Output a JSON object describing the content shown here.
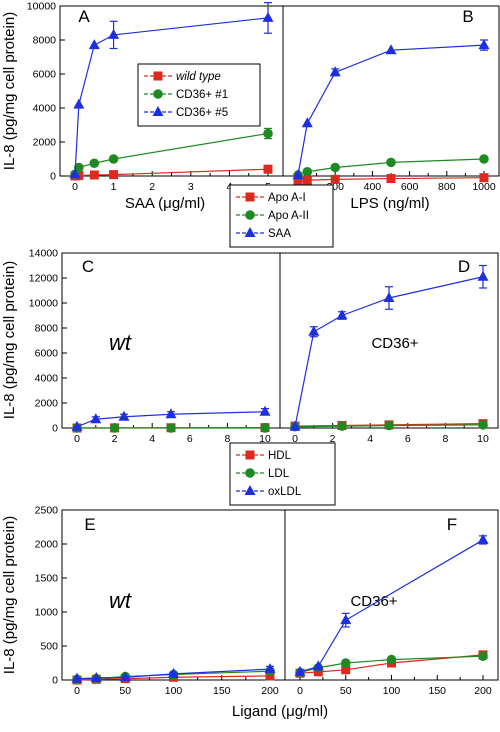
{
  "colors": {
    "red": "#dd2a1f",
    "green": "#1f8a23",
    "blue": "#1f2fe0"
  },
  "chart_data": [
    {
      "type": "line",
      "title": "",
      "ylabel": "IL-8 (pg/mg cell protein)",
      "ylim": [
        0,
        10000
      ],
      "yticks": [
        "0",
        "2000",
        "4000",
        "6000",
        "8000",
        "10000"
      ],
      "yticks_num": [
        0,
        2000,
        4000,
        6000,
        8000,
        10000
      ],
      "legend": [
        "wild type",
        "CD36+ #1",
        "CD36+ #5"
      ],
      "legend_placement": "top-right of panel A",
      "panels": [
        {
          "letter": "A",
          "xlabel": "SAA (μg/ml)",
          "xlim": [
            0,
            5
          ],
          "xticks": [
            "0",
            "1",
            "2",
            "3",
            "4",
            "5"
          ],
          "xticks_num": [
            0,
            1,
            2,
            3,
            4,
            5
          ],
          "series": [
            {
              "name": "wild type",
              "color": "red",
              "marker": "square",
              "x": [
                0,
                0.1,
                0.5,
                1,
                5
              ],
              "y": [
                0,
                30,
                60,
                80,
                400
              ],
              "err": [
                0,
                0,
                0,
                0,
                0
              ]
            },
            {
              "name": "CD36+ #1",
              "color": "green",
              "marker": "circle",
              "x": [
                0,
                0.1,
                0.5,
                1,
                5
              ],
              "y": [
                100,
                500,
                750,
                1000,
                2500
              ],
              "err": [
                0,
                0,
                0,
                0,
                300
              ]
            },
            {
              "name": "CD36+ #5",
              "color": "blue",
              "marker": "triangle",
              "x": [
                0,
                0.1,
                0.5,
                1,
                5
              ],
              "y": [
                100,
                4200,
                7700,
                8300,
                9300
              ],
              "err": [
                0,
                0,
                0,
                800,
                900
              ]
            }
          ]
        },
        {
          "letter": "B",
          "xlabel": "LPS (ng/ml)",
          "xlim": [
            0,
            1000
          ],
          "xticks": [
            "0",
            "200",
            "400",
            "600",
            "800",
            "1000"
          ],
          "xticks_num": [
            0,
            200,
            400,
            600,
            800,
            1000
          ],
          "series": [
            {
              "name": "wild type",
              "color": "red",
              "marker": "square",
              "x": [
                0,
                50,
                200,
                500,
                1000
              ],
              "y": [
                -300,
                -250,
                -200,
                -150,
                -100
              ],
              "err": [
                0,
                0,
                0,
                0,
                0
              ]
            },
            {
              "name": "CD36+ #1",
              "color": "green",
              "marker": "circle",
              "x": [
                0,
                50,
                200,
                500,
                1000
              ],
              "y": [
                50,
                250,
                500,
                800,
                1000
              ],
              "err": [
                0,
                0,
                0,
                0,
                0
              ]
            },
            {
              "name": "CD36+ #5",
              "color": "blue",
              "marker": "triangle",
              "x": [
                0,
                50,
                200,
                500,
                1000
              ],
              "y": [
                50,
                3100,
                6100,
                7400,
                7700
              ],
              "err": [
                0,
                0,
                200,
                0,
                300
              ]
            }
          ]
        }
      ]
    },
    {
      "type": "line",
      "title": "",
      "ylabel": "IL-8 (pg/mg cell protein)",
      "xlabel": "Ligand (μg/ml)",
      "ylim": [
        0,
        14000
      ],
      "yticks": [
        "0",
        "2000",
        "4000",
        "6000",
        "8000",
        "10000",
        "12000",
        "14000"
      ],
      "yticks_num": [
        0,
        2000,
        4000,
        6000,
        8000,
        10000,
        12000,
        14000
      ],
      "legend": [
        "Apo A-I",
        "Apo A-II",
        "SAA"
      ],
      "legend_placement": "top-center above panels",
      "panels": [
        {
          "letter": "C",
          "annotation": "wt",
          "xlim": [
            0,
            10
          ],
          "xticks": [
            "0",
            "2",
            "4",
            "6",
            "8",
            "10"
          ],
          "xticks_num": [
            0,
            2,
            4,
            6,
            8,
            10
          ],
          "series": [
            {
              "name": "Apo A-I",
              "color": "red",
              "marker": "square",
              "x": [
                0,
                2,
                5,
                10
              ],
              "y": [
                0,
                10,
                20,
                30
              ],
              "err": [
                0,
                0,
                0,
                0
              ]
            },
            {
              "name": "Apo A-II",
              "color": "green",
              "marker": "circle",
              "x": [
                0,
                2,
                5,
                10
              ],
              "y": [
                0,
                0,
                0,
                0
              ],
              "err": [
                0,
                0,
                0,
                0
              ]
            },
            {
              "name": "SAA",
              "color": "blue",
              "marker": "triangle",
              "x": [
                0,
                1,
                2.5,
                5,
                10
              ],
              "y": [
                100,
                700,
                900,
                1100,
                1300
              ],
              "err": [
                0,
                200,
                200,
                200,
                250
              ]
            }
          ]
        },
        {
          "letter": "D",
          "annotation": "CD36+",
          "xlim": [
            0,
            10
          ],
          "xticks": [
            "0",
            "2",
            "4",
            "6",
            "8",
            "10"
          ],
          "xticks_num": [
            0,
            2,
            4,
            6,
            8,
            10
          ],
          "series": [
            {
              "name": "Apo A-I",
              "color": "red",
              "marker": "square",
              "x": [
                0,
                2.5,
                5,
                10
              ],
              "y": [
                150,
                200,
                250,
                350
              ],
              "err": [
                0,
                0,
                0,
                0
              ]
            },
            {
              "name": "Apo A-II",
              "color": "green",
              "marker": "circle",
              "x": [
                0,
                2.5,
                5,
                10
              ],
              "y": [
                100,
                150,
                200,
                250
              ],
              "err": [
                0,
                0,
                0,
                0
              ]
            },
            {
              "name": "SAA",
              "color": "blue",
              "marker": "triangle",
              "x": [
                0,
                1,
                2.5,
                5,
                10
              ],
              "y": [
                100,
                7700,
                9000,
                10400,
                12100
              ],
              "err": [
                0,
                400,
                300,
                900,
                900
              ]
            }
          ]
        }
      ]
    },
    {
      "type": "line",
      "title": "",
      "ylabel": "IL-8 (pg/mg cell protein)",
      "xlabel": "Ligand (μg/ml)",
      "ylim": [
        0,
        2500
      ],
      "yticks": [
        "0",
        "500",
        "1000",
        "1500",
        "2000",
        "2500"
      ],
      "yticks_num": [
        0,
        500,
        1000,
        1500,
        2000,
        2500
      ],
      "legend": [
        "HDL",
        "LDL",
        "oxLDL"
      ],
      "legend_placement": "top-center above panels",
      "panels": [
        {
          "letter": "E",
          "annotation": "wt",
          "xlim": [
            0,
            200
          ],
          "xticks": [
            "0",
            "50",
            "100",
            "150",
            "200"
          ],
          "xticks_num": [
            0,
            50,
            100,
            150,
            200
          ],
          "series": [
            {
              "name": "HDL",
              "color": "red",
              "marker": "square",
              "x": [
                0,
                20,
                50,
                100,
                200
              ],
              "y": [
                0,
                10,
                20,
                40,
                60
              ],
              "err": [
                0,
                0,
                0,
                0,
                0
              ]
            },
            {
              "name": "LDL",
              "color": "green",
              "marker": "circle",
              "x": [
                0,
                20,
                50,
                100,
                200
              ],
              "y": [
                10,
                20,
                50,
                80,
                130
              ],
              "err": [
                0,
                0,
                0,
                0,
                0
              ]
            },
            {
              "name": "oxLDL",
              "color": "blue",
              "marker": "triangle",
              "x": [
                0,
                20,
                50,
                100,
                200
              ],
              "y": [
                20,
                30,
                40,
                90,
                160
              ],
              "err": [
                0,
                0,
                0,
                20,
                40
              ]
            }
          ]
        },
        {
          "letter": "F",
          "annotation": "CD36+",
          "xlim": [
            0,
            200
          ],
          "xticks": [
            "0",
            "50",
            "100",
            "150",
            "200"
          ],
          "xticks_num": [
            0,
            50,
            100,
            150,
            200
          ],
          "series": [
            {
              "name": "HDL",
              "color": "red",
              "marker": "square",
              "x": [
                0,
                20,
                50,
                100,
                200
              ],
              "y": [
                100,
                120,
                150,
                250,
                370
              ],
              "err": [
                0,
                0,
                0,
                0,
                0
              ]
            },
            {
              "name": "LDL",
              "color": "green",
              "marker": "circle",
              "x": [
                0,
                20,
                50,
                100,
                200
              ],
              "y": [
                110,
                180,
                250,
                300,
                350
              ],
              "err": [
                0,
                0,
                0,
                0,
                0
              ]
            },
            {
              "name": "oxLDL",
              "color": "blue",
              "marker": "triangle",
              "x": [
                0,
                20,
                50,
                100,
                200
              ],
              "y": [
                120,
                200,
                880,
                0,
                2060
              ],
              "err": [
                0,
                0,
                100,
                0,
                60
              ],
              "skip": [
                3
              ]
            }
          ]
        }
      ]
    }
  ]
}
